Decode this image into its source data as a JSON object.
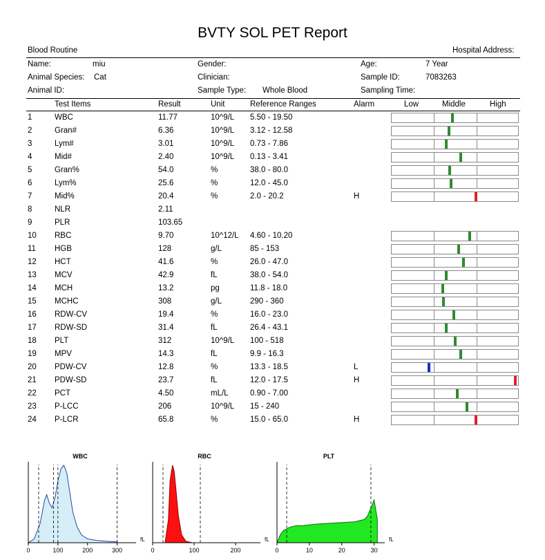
{
  "title": "BVTY SOL PET Report",
  "header": {
    "section": "Blood Routine",
    "hospital_address_label": "Hospital Address:",
    "name_label": "Name:",
    "name_value": "miu",
    "gender_label": "Gender:",
    "age_label": "Age:",
    "age_value": "7 Year",
    "species_label": "Animal Species:",
    "species_value": "Cat",
    "clinician_label": "Clinician:",
    "sample_id_label": "Sample ID:",
    "sample_id_value": "7083263",
    "animal_id_label": "Animal ID:",
    "sample_type_label": "Sample Type:",
    "sample_type_value": "Whole Blood",
    "sampling_time_label": "Sampling Time:"
  },
  "columns": {
    "test_items": "Test Items",
    "result": "Result",
    "unit": "Unit",
    "ref": "Reference Ranges",
    "alarm": "Alarm",
    "low": "Low",
    "middle": "Middle",
    "high": "High"
  },
  "rows": [
    {
      "num": "1",
      "item": "WBC",
      "result": "11.77",
      "unit": "10^9/L",
      "ref": "5.50 - 19.50",
      "alarm": "",
      "level": 0.48,
      "bar": true
    },
    {
      "num": "2",
      "item": "Gran#",
      "result": "6.36",
      "unit": "10^9/L",
      "ref": "3.12 - 12.58",
      "alarm": "",
      "level": 0.45,
      "bar": true
    },
    {
      "num": "3",
      "item": "Lym#",
      "result": "3.01",
      "unit": "10^9/L",
      "ref": "0.73 - 7.86",
      "alarm": "",
      "level": 0.43,
      "bar": true
    },
    {
      "num": "4",
      "item": "Mid#",
      "result": "2.40",
      "unit": "10^9/L",
      "ref": "0.13 - 3.41",
      "alarm": "",
      "level": 0.55,
      "bar": true
    },
    {
      "num": "5",
      "item": "Gran%",
      "result": "54.0",
      "unit": "%",
      "ref": "38.0 - 80.0",
      "alarm": "",
      "level": 0.46,
      "bar": true
    },
    {
      "num": "6",
      "item": "Lym%",
      "result": "25.6",
      "unit": "%",
      "ref": "12.0 - 45.0",
      "alarm": "",
      "level": 0.47,
      "bar": true
    },
    {
      "num": "7",
      "item": "Mid%",
      "result": "20.4",
      "unit": "%",
      "ref": "2.0 - 20.2",
      "alarm": "H",
      "level": 0.67,
      "bar": true
    },
    {
      "num": "8",
      "item": "NLR",
      "result": "2.11",
      "unit": "",
      "ref": "",
      "alarm": "",
      "level": null,
      "bar": false
    },
    {
      "num": "9",
      "item": "PLR",
      "result": "103.65",
      "unit": "",
      "ref": "",
      "alarm": "",
      "level": null,
      "bar": false
    },
    {
      "num": "10",
      "item": "RBC",
      "result": "9.70",
      "unit": "10^12/L",
      "ref": "4.60 - 10.20",
      "alarm": "",
      "level": 0.62,
      "bar": true
    },
    {
      "num": "11",
      "item": "HGB",
      "result": "128",
      "unit": "g/L",
      "ref": "85 - 153",
      "alarm": "",
      "level": 0.53,
      "bar": true
    },
    {
      "num": "12",
      "item": "HCT",
      "result": "41.6",
      "unit": "%",
      "ref": "26.0 - 47.0",
      "alarm": "",
      "level": 0.57,
      "bar": true
    },
    {
      "num": "13",
      "item": "MCV",
      "result": "42.9",
      "unit": "fL",
      "ref": "38.0 - 54.0",
      "alarm": "",
      "level": 0.43,
      "bar": true
    },
    {
      "num": "14",
      "item": "MCH",
      "result": "13.2",
      "unit": "pg",
      "ref": "11.8 - 18.0",
      "alarm": "",
      "level": 0.4,
      "bar": true
    },
    {
      "num": "15",
      "item": "MCHC",
      "result": "308",
      "unit": "g/L",
      "ref": "290 - 360",
      "alarm": "",
      "level": 0.41,
      "bar": true
    },
    {
      "num": "16",
      "item": "RDW-CV",
      "result": "19.4",
      "unit": "%",
      "ref": "16.0 - 23.0",
      "alarm": "",
      "level": 0.49,
      "bar": true
    },
    {
      "num": "17",
      "item": "RDW-SD",
      "result": "31.4",
      "unit": "fL",
      "ref": "26.4 - 43.1",
      "alarm": "",
      "level": 0.43,
      "bar": true
    },
    {
      "num": "18",
      "item": "PLT",
      "result": "312",
      "unit": "10^9/L",
      "ref": "100 - 518",
      "alarm": "",
      "level": 0.5,
      "bar": true
    },
    {
      "num": "19",
      "item": "MPV",
      "result": "14.3",
      "unit": "fL",
      "ref": "9.9 - 16.3",
      "alarm": "",
      "level": 0.55,
      "bar": true
    },
    {
      "num": "20",
      "item": "PDW-CV",
      "result": "12.8",
      "unit": "%",
      "ref": "13.3 - 18.5",
      "alarm": "L",
      "level": 0.29,
      "bar": true
    },
    {
      "num": "21",
      "item": "PDW-SD",
      "result": "23.7",
      "unit": "fL",
      "ref": "12.0 - 17.5",
      "alarm": "H",
      "level": 0.99,
      "bar": true
    },
    {
      "num": "22",
      "item": "PCT",
      "result": "4.50",
      "unit": "mL/L",
      "ref": "0.90 - 7.00",
      "alarm": "",
      "level": 0.52,
      "bar": true
    },
    {
      "num": "23",
      "item": "P-LCC",
      "result": "206",
      "unit": "10^9/L",
      "ref": "15 - 240",
      "alarm": "",
      "level": 0.6,
      "bar": true
    },
    {
      "num": "24",
      "item": "P-LCR",
      "result": "65.8",
      "unit": "%",
      "ref": "15.0 - 65.0",
      "alarm": "H",
      "level": 0.67,
      "bar": true
    }
  ],
  "colors": {
    "normal": "#2e8b2e",
    "high": "#e0202a",
    "low": "#1a2ad0"
  },
  "chart_data": [
    {
      "type": "area",
      "title": "WBC",
      "unit_label": "fL",
      "x_ticks": [
        "0",
        "100",
        "200",
        "300"
      ],
      "xlim": [
        0,
        350
      ],
      "x": [
        0,
        20,
        40,
        55,
        62,
        70,
        80,
        90,
        100,
        110,
        120,
        130,
        140,
        150,
        165,
        180,
        200,
        230,
        260,
        300
      ],
      "y": [
        0,
        0.05,
        0.25,
        0.55,
        0.62,
        0.52,
        0.45,
        0.58,
        0.8,
        0.95,
        1.0,
        0.9,
        0.65,
        0.4,
        0.2,
        0.1,
        0.05,
        0.03,
        0.02,
        0.01
      ],
      "dividers": [
        35,
        85,
        100,
        300
      ],
      "fill": "#d6eef8",
      "line": "#1f4aa0"
    },
    {
      "type": "area",
      "title": "RBC",
      "unit_label": "fL",
      "x_ticks": [
        "0",
        "100",
        "200"
      ],
      "xlim": [
        0,
        250
      ],
      "x": [
        0,
        30,
        38,
        42,
        48,
        52,
        56,
        62,
        70,
        80,
        95,
        200
      ],
      "y": [
        0,
        0,
        0.3,
        0.8,
        1.0,
        0.92,
        0.7,
        0.35,
        0.1,
        0.02,
        0,
        0
      ],
      "dividers": [
        25,
        115
      ],
      "fill": "#ff1010",
      "line": "#8b0000"
    },
    {
      "type": "area",
      "title": "PLT",
      "unit_label": "fL",
      "x_ticks": [
        "0",
        "10",
        "20",
        "30"
      ],
      "xlim": [
        0,
        32
      ],
      "x": [
        0,
        1,
        2,
        4,
        6,
        8,
        12,
        16,
        20,
        24,
        27,
        28,
        29,
        30,
        31
      ],
      "y": [
        0,
        0.1,
        0.16,
        0.2,
        0.22,
        0.22,
        0.24,
        0.25,
        0.26,
        0.27,
        0.3,
        0.35,
        0.45,
        0.55,
        0.3
      ],
      "dividers": [
        3,
        29
      ],
      "fill": "#22e822",
      "line": "#0a6b0a"
    }
  ]
}
